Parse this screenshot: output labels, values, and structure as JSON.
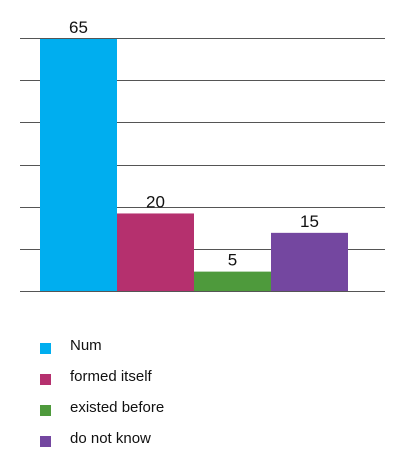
{
  "chart_data": {
    "type": "bar",
    "ylim": [
      0,
      65
    ],
    "grid": true,
    "legend_position": "bottom",
    "series": [
      {
        "name": "Num",
        "value": 65,
        "color": "#00AEEF"
      },
      {
        "name": "formed itself",
        "value": 20,
        "color": "#B5306E"
      },
      {
        "name": "existed before",
        "value": 5,
        "color": "#4E9A3C"
      },
      {
        "name": "do not know",
        "value": 15,
        "color": "#7447A0"
      }
    ]
  }
}
